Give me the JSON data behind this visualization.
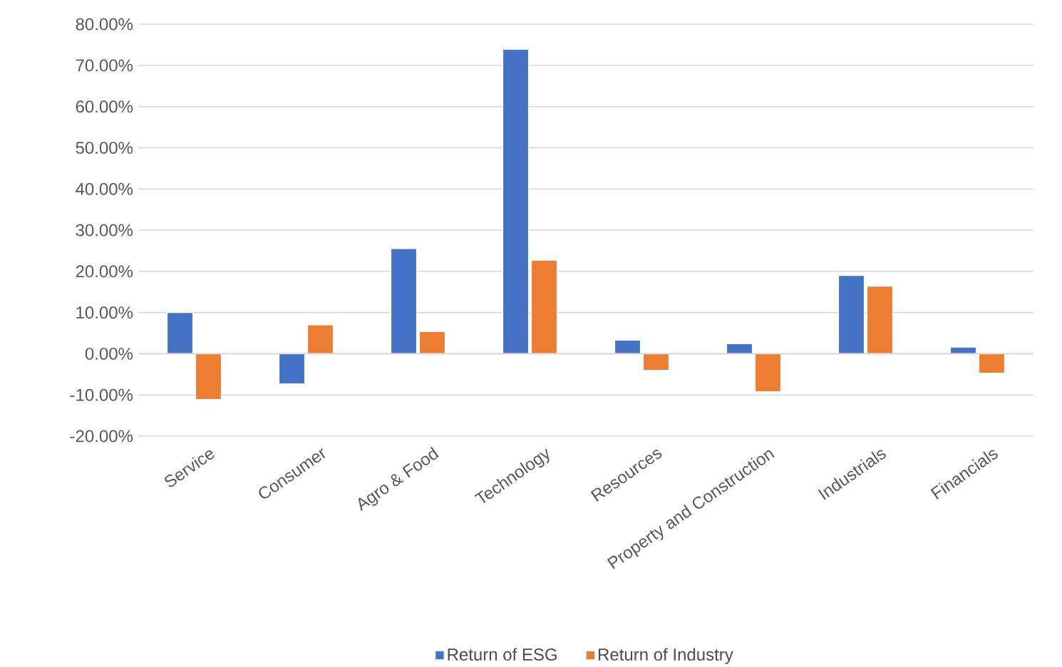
{
  "chart_data": {
    "type": "bar",
    "categories": [
      "Service",
      "Consumer",
      "Agro & Food",
      "Technology",
      "Resources",
      "Property and Construction",
      "Industrials",
      "Financials"
    ],
    "series": [
      {
        "name": "Return of ESG",
        "color": "#4472c4",
        "values": [
          10.0,
          -7.3,
          25.5,
          73.9,
          3.3,
          2.4,
          19.0,
          1.6
        ]
      },
      {
        "name": "Return of Industry",
        "color": "#ed7d31",
        "values": [
          -11.1,
          7.0,
          5.4,
          22.7,
          -4.0,
          -9.2,
          16.4,
          -4.7
        ]
      }
    ],
    "ylim": [
      -20,
      80
    ],
    "yticks": [
      {
        "value": -20,
        "label": "-20.00%"
      },
      {
        "value": -10,
        "label": "-10.00%"
      },
      {
        "value": 0,
        "label": "0.00%"
      },
      {
        "value": 10,
        "label": "10.00%"
      },
      {
        "value": 20,
        "label": "20.00%"
      },
      {
        "value": 30,
        "label": "30.00%"
      },
      {
        "value": 40,
        "label": "40.00%"
      },
      {
        "value": 50,
        "label": "50.00%"
      },
      {
        "value": 60,
        "label": "60.00%"
      },
      {
        "value": 70,
        "label": "70.00%"
      },
      {
        "value": 80,
        "label": "80.00%"
      }
    ],
    "grid": "y",
    "legend": "bottom"
  }
}
